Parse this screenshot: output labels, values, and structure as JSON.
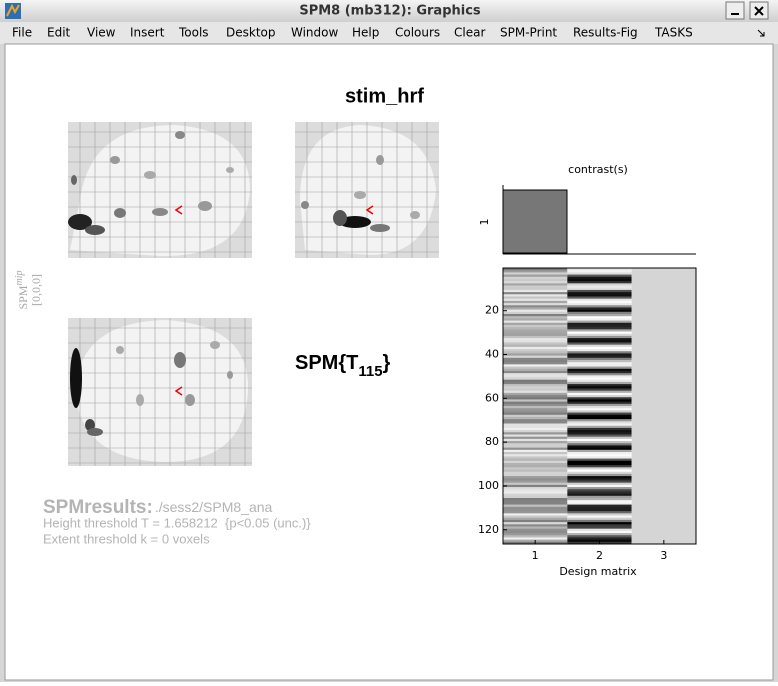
{
  "window": {
    "title": "SPM8 (mb312): Graphics"
  },
  "menu": [
    "File",
    "Edit",
    "View",
    "Insert",
    "Tools",
    "Desktop",
    "Window",
    "Help",
    "Colours",
    "Clear",
    "SPM-Print",
    "Results-Fig",
    "TASKS"
  ],
  "figure": {
    "title": "stim_hrf",
    "mip_label": {
      "prefix": "SPM",
      "suffix": "mip"
    },
    "mip_coords": "[0,0,0]",
    "stat": {
      "prefix": "SPM{T",
      "subscript": "115",
      "suffix": "}"
    }
  },
  "design": {
    "contrast_title": "contrast(s)",
    "contrast_yticks": [
      1
    ],
    "xlabel": "Design matrix",
    "xticks": [
      1,
      2,
      3
    ],
    "yticks": [
      20,
      40,
      60,
      80,
      100,
      120
    ]
  },
  "results": {
    "heading": "SPMresults:",
    "path": "./sess2/SPM8_ana",
    "height": "Height threshold T = 1.658212  {p<0.05 (unc.)}",
    "extent": "Extent threshold k = 0 voxels"
  }
}
